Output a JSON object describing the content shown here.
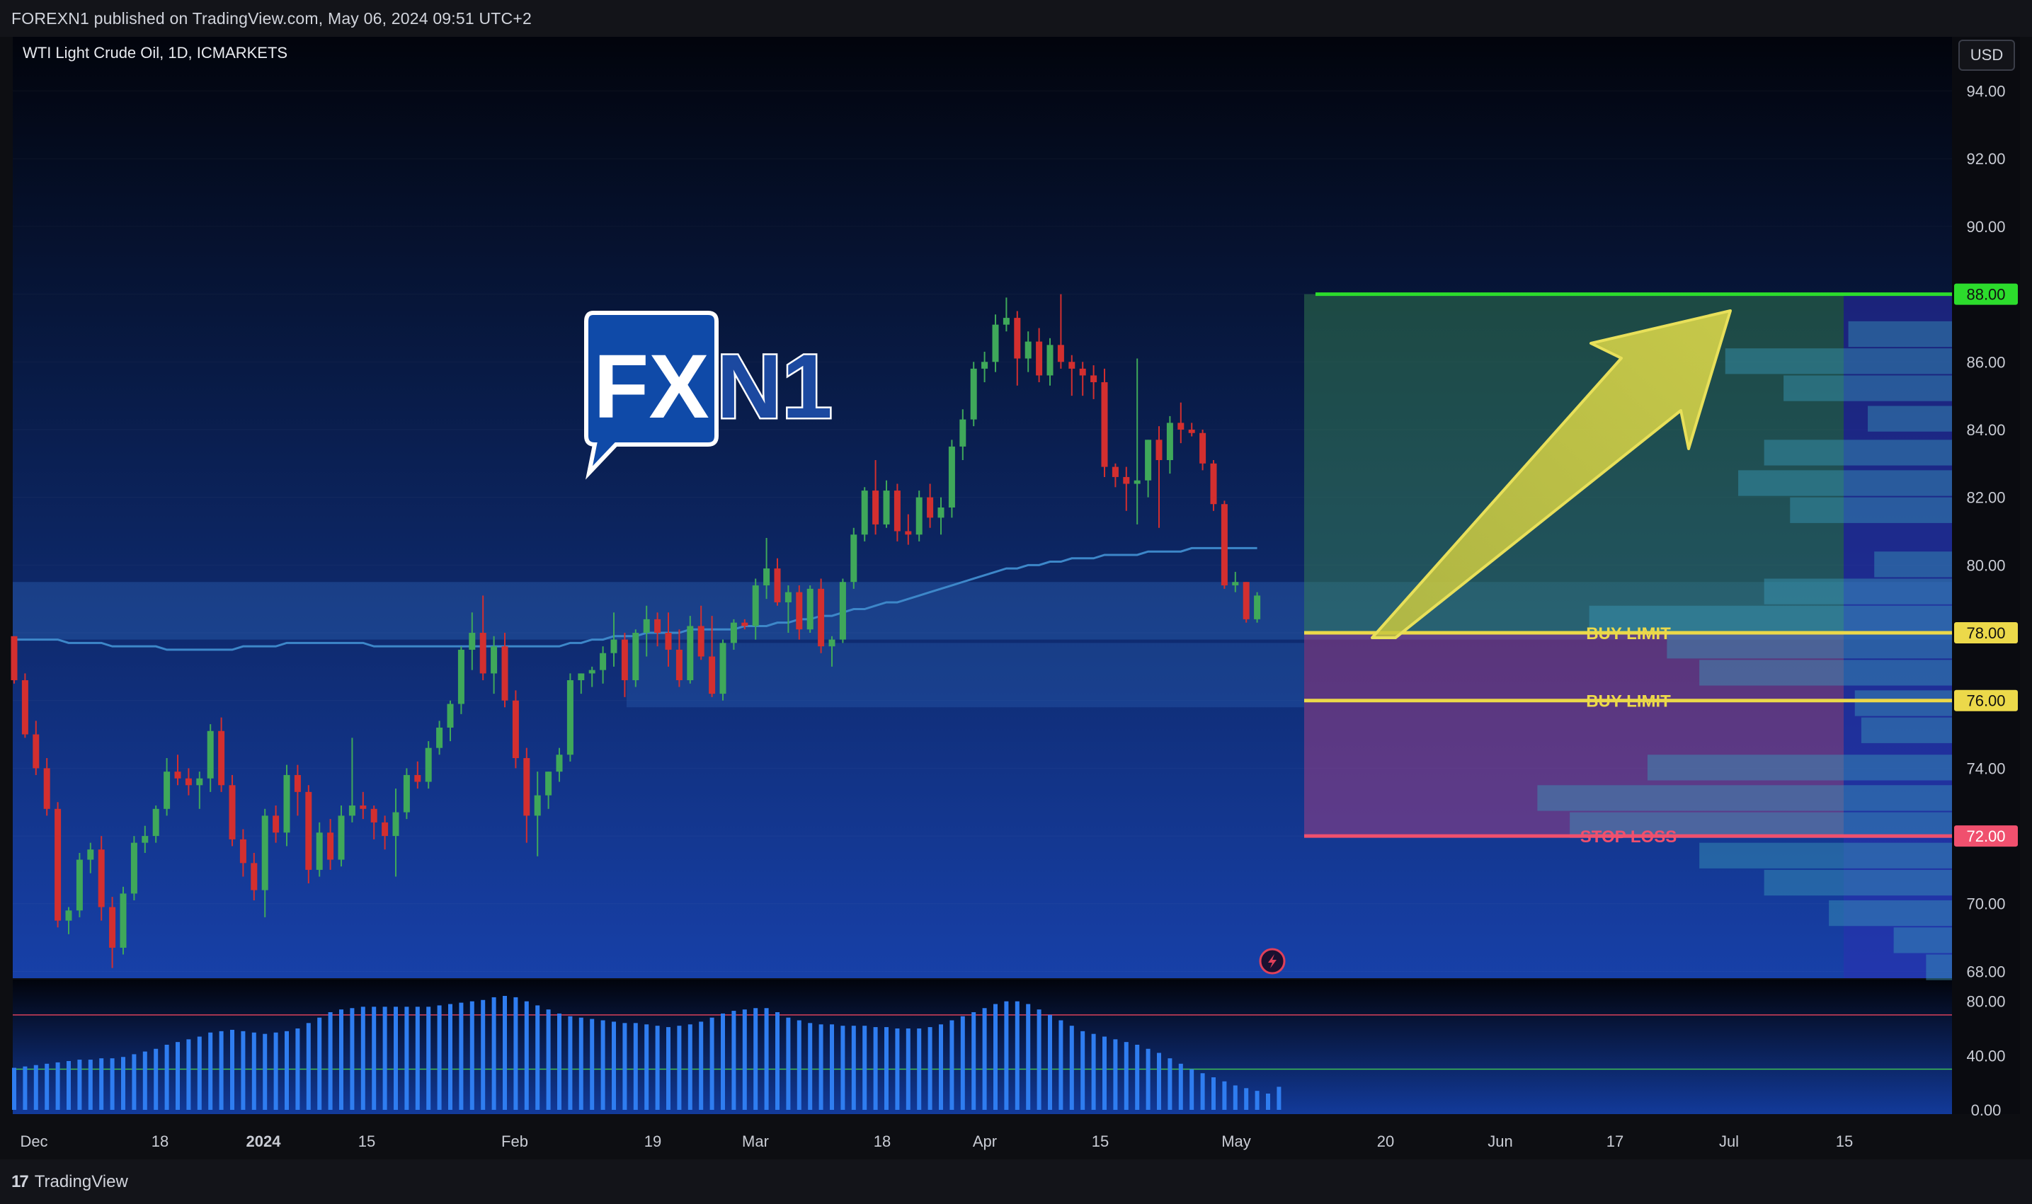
{
  "header": {
    "publish_info": "FOREXN1 published on TradingView.com, May 06, 2024 09:51 UTC+2"
  },
  "chart_header": {
    "symbol_title": "WTI Light Crude Oil, 1D, ICMARKETS",
    "currency_button": "USD"
  },
  "watermark": {
    "logo_left": "FX",
    "logo_right": "N1"
  },
  "footer": {
    "brand_label": "TradingView",
    "brand_glyph": "17"
  },
  "colors": {
    "up_candle": "#26a69a",
    "up_candle_fill": "#3fa85a",
    "down_candle": "#d32f2f",
    "ma_line": "#3d87c9",
    "target_line": "#2cdc2c",
    "buy_limit_line": "#ecd94a",
    "stop_loss_line": "#f0506e",
    "rsi_bar": "#2f7df0"
  },
  "chart_data": [
    {
      "type": "candlestick",
      "title": "WTI Light Crude Oil, 1D, ICMARKETS",
      "currency": "USD",
      "y_ticks": [
        "94.00",
        "92.00",
        "90.00",
        "86.00",
        "84.00",
        "82.00",
        "80.00",
        "74.00",
        "70.00",
        "68.00"
      ],
      "ylim": [
        67.8,
        95.6
      ],
      "x_ticks": [
        "Dec",
        "18",
        "2024",
        "15",
        "Feb",
        "19",
        "Mar",
        "18",
        "Apr",
        "15",
        "May",
        "20",
        "Jun",
        "17",
        "Jul",
        "15"
      ],
      "candles": [
        {
          "o": 77.9,
          "h": 77.9,
          "l": 76.5,
          "c": 76.6
        },
        {
          "o": 76.6,
          "h": 76.8,
          "l": 74.9,
          "c": 75.0
        },
        {
          "o": 75.0,
          "h": 75.4,
          "l": 73.8,
          "c": 74.0
        },
        {
          "o": 74.0,
          "h": 74.3,
          "l": 72.6,
          "c": 72.8
        },
        {
          "o": 72.8,
          "h": 73.0,
          "l": 69.3,
          "c": 69.5
        },
        {
          "o": 69.5,
          "h": 69.9,
          "l": 69.1,
          "c": 69.8
        },
        {
          "o": 69.8,
          "h": 71.5,
          "l": 69.6,
          "c": 71.3
        },
        {
          "o": 71.3,
          "h": 71.8,
          "l": 70.9,
          "c": 71.6
        },
        {
          "o": 71.6,
          "h": 72.0,
          "l": 69.5,
          "c": 69.9
        },
        {
          "o": 69.9,
          "h": 70.2,
          "l": 68.1,
          "c": 68.7
        },
        {
          "o": 68.7,
          "h": 70.5,
          "l": 68.5,
          "c": 70.3
        },
        {
          "o": 70.3,
          "h": 72.0,
          "l": 70.1,
          "c": 71.8
        },
        {
          "o": 71.8,
          "h": 72.3,
          "l": 71.5,
          "c": 72.0
        },
        {
          "o": 72.0,
          "h": 72.9,
          "l": 71.8,
          "c": 72.8
        },
        {
          "o": 72.8,
          "h": 74.3,
          "l": 72.6,
          "c": 73.9
        },
        {
          "o": 73.9,
          "h": 74.4,
          "l": 73.5,
          "c": 73.7
        },
        {
          "o": 73.7,
          "h": 74.0,
          "l": 73.2,
          "c": 73.5
        },
        {
          "o": 73.5,
          "h": 73.9,
          "l": 72.8,
          "c": 73.7
        },
        {
          "o": 73.7,
          "h": 75.3,
          "l": 73.3,
          "c": 75.1
        },
        {
          "o": 75.1,
          "h": 75.5,
          "l": 73.3,
          "c": 73.5
        },
        {
          "o": 73.5,
          "h": 73.8,
          "l": 71.7,
          "c": 71.9
        },
        {
          "o": 71.9,
          "h": 72.2,
          "l": 70.8,
          "c": 71.2
        },
        {
          "o": 71.2,
          "h": 71.5,
          "l": 70.1,
          "c": 70.4
        },
        {
          "o": 70.4,
          "h": 72.8,
          "l": 69.6,
          "c": 72.6
        },
        {
          "o": 72.6,
          "h": 72.9,
          "l": 71.8,
          "c": 72.1
        },
        {
          "o": 72.1,
          "h": 74.1,
          "l": 71.7,
          "c": 73.8
        },
        {
          "o": 73.8,
          "h": 74.1,
          "l": 72.6,
          "c": 73.3
        },
        {
          "o": 73.3,
          "h": 73.5,
          "l": 70.6,
          "c": 71.0
        },
        {
          "o": 71.0,
          "h": 72.4,
          "l": 70.8,
          "c": 72.1
        },
        {
          "o": 72.1,
          "h": 72.5,
          "l": 71.0,
          "c": 71.3
        },
        {
          "o": 71.3,
          "h": 72.9,
          "l": 71.1,
          "c": 72.6
        },
        {
          "o": 72.6,
          "h": 74.9,
          "l": 72.4,
          "c": 72.9
        },
        {
          "o": 72.9,
          "h": 73.3,
          "l": 72.5,
          "c": 72.8
        },
        {
          "o": 72.8,
          "h": 72.9,
          "l": 71.9,
          "c": 72.4
        },
        {
          "o": 72.4,
          "h": 72.6,
          "l": 71.6,
          "c": 72.0
        },
        {
          "o": 72.0,
          "h": 73.4,
          "l": 70.8,
          "c": 72.7
        },
        {
          "o": 72.7,
          "h": 74.0,
          "l": 72.5,
          "c": 73.8
        },
        {
          "o": 73.8,
          "h": 74.2,
          "l": 73.4,
          "c": 73.6
        },
        {
          "o": 73.6,
          "h": 74.8,
          "l": 73.4,
          "c": 74.6
        },
        {
          "o": 74.6,
          "h": 75.4,
          "l": 74.4,
          "c": 75.2
        },
        {
          "o": 75.2,
          "h": 76.0,
          "l": 74.8,
          "c": 75.9
        },
        {
          "o": 75.9,
          "h": 77.6,
          "l": 75.6,
          "c": 77.5
        },
        {
          "o": 77.5,
          "h": 78.6,
          "l": 76.9,
          "c": 78.0
        },
        {
          "o": 78.0,
          "h": 79.1,
          "l": 76.6,
          "c": 76.8
        },
        {
          "o": 76.8,
          "h": 77.9,
          "l": 76.2,
          "c": 77.6
        },
        {
          "o": 77.6,
          "h": 78.0,
          "l": 75.8,
          "c": 76.0
        },
        {
          "o": 76.0,
          "h": 76.3,
          "l": 74.0,
          "c": 74.3
        },
        {
          "o": 74.3,
          "h": 74.6,
          "l": 71.8,
          "c": 72.6
        },
        {
          "o": 72.6,
          "h": 73.9,
          "l": 71.4,
          "c": 73.2
        },
        {
          "o": 73.2,
          "h": 73.9,
          "l": 72.8,
          "c": 73.9
        },
        {
          "o": 73.9,
          "h": 74.6,
          "l": 73.6,
          "c": 74.4
        },
        {
          "o": 74.4,
          "h": 76.8,
          "l": 74.2,
          "c": 76.6
        },
        {
          "o": 76.6,
          "h": 76.8,
          "l": 76.2,
          "c": 76.8
        },
        {
          "o": 76.8,
          "h": 77.0,
          "l": 76.4,
          "c": 76.9
        },
        {
          "o": 76.9,
          "h": 77.6,
          "l": 76.5,
          "c": 77.4
        },
        {
          "o": 77.4,
          "h": 78.6,
          "l": 77.0,
          "c": 77.8
        },
        {
          "o": 77.8,
          "h": 78.0,
          "l": 76.1,
          "c": 76.6
        },
        {
          "o": 76.6,
          "h": 78.1,
          "l": 76.4,
          "c": 78.0
        },
        {
          "o": 78.0,
          "h": 78.8,
          "l": 77.3,
          "c": 78.4
        },
        {
          "o": 78.4,
          "h": 78.6,
          "l": 77.6,
          "c": 78.0
        },
        {
          "o": 78.0,
          "h": 78.6,
          "l": 77.0,
          "c": 77.5
        },
        {
          "o": 77.5,
          "h": 78.1,
          "l": 76.4,
          "c": 76.6
        },
        {
          "o": 76.6,
          "h": 78.5,
          "l": 76.5,
          "c": 78.2
        },
        {
          "o": 78.2,
          "h": 78.8,
          "l": 77.2,
          "c": 77.3
        },
        {
          "o": 77.3,
          "h": 78.5,
          "l": 76.1,
          "c": 76.2
        },
        {
          "o": 76.2,
          "h": 77.8,
          "l": 76.0,
          "c": 77.7
        },
        {
          "o": 77.7,
          "h": 78.4,
          "l": 77.5,
          "c": 78.3
        },
        {
          "o": 78.3,
          "h": 78.4,
          "l": 78.1,
          "c": 78.2
        },
        {
          "o": 78.2,
          "h": 79.6,
          "l": 77.8,
          "c": 79.4
        },
        {
          "o": 79.4,
          "h": 80.8,
          "l": 79.0,
          "c": 79.9
        },
        {
          "o": 79.9,
          "h": 80.2,
          "l": 78.8,
          "c": 78.9
        },
        {
          "o": 78.9,
          "h": 79.4,
          "l": 78.0,
          "c": 79.2
        },
        {
          "o": 79.2,
          "h": 79.4,
          "l": 77.8,
          "c": 78.1
        },
        {
          "o": 78.1,
          "h": 79.4,
          "l": 78.0,
          "c": 79.3
        },
        {
          "o": 79.3,
          "h": 79.6,
          "l": 77.4,
          "c": 77.6
        },
        {
          "o": 77.6,
          "h": 77.9,
          "l": 77.0,
          "c": 77.8
        },
        {
          "o": 77.8,
          "h": 79.6,
          "l": 77.7,
          "c": 79.5
        },
        {
          "o": 79.5,
          "h": 81.1,
          "l": 79.3,
          "c": 80.9
        },
        {
          "o": 80.9,
          "h": 82.3,
          "l": 80.7,
          "c": 82.2
        },
        {
          "o": 82.2,
          "h": 83.1,
          "l": 80.9,
          "c": 81.2
        },
        {
          "o": 81.2,
          "h": 82.5,
          "l": 81.1,
          "c": 82.2
        },
        {
          "o": 82.2,
          "h": 82.4,
          "l": 80.7,
          "c": 81.0
        },
        {
          "o": 81.0,
          "h": 81.5,
          "l": 80.6,
          "c": 80.9
        },
        {
          "o": 80.9,
          "h": 82.2,
          "l": 80.7,
          "c": 82.0
        },
        {
          "o": 82.0,
          "h": 82.4,
          "l": 81.1,
          "c": 81.4
        },
        {
          "o": 81.4,
          "h": 82.0,
          "l": 80.9,
          "c": 81.7
        },
        {
          "o": 81.7,
          "h": 83.7,
          "l": 81.4,
          "c": 83.5
        },
        {
          "o": 83.5,
          "h": 84.6,
          "l": 83.1,
          "c": 84.3
        },
        {
          "o": 84.3,
          "h": 86.0,
          "l": 84.1,
          "c": 85.8
        },
        {
          "o": 85.8,
          "h": 86.3,
          "l": 85.4,
          "c": 86.0
        },
        {
          "o": 86.0,
          "h": 87.4,
          "l": 85.7,
          "c": 87.1
        },
        {
          "o": 87.1,
          "h": 87.9,
          "l": 86.9,
          "c": 87.3
        },
        {
          "o": 87.3,
          "h": 87.5,
          "l": 85.3,
          "c": 86.1
        },
        {
          "o": 86.1,
          "h": 86.9,
          "l": 85.7,
          "c": 86.6
        },
        {
          "o": 86.6,
          "h": 87.0,
          "l": 85.4,
          "c": 85.6
        },
        {
          "o": 85.6,
          "h": 86.7,
          "l": 85.3,
          "c": 86.5
        },
        {
          "o": 86.5,
          "h": 88.0,
          "l": 85.8,
          "c": 86.0
        },
        {
          "o": 86.0,
          "h": 86.2,
          "l": 85.0,
          "c": 85.8
        },
        {
          "o": 85.8,
          "h": 86.0,
          "l": 85.0,
          "c": 85.6
        },
        {
          "o": 85.6,
          "h": 85.9,
          "l": 84.9,
          "c": 85.4
        },
        {
          "o": 85.4,
          "h": 85.8,
          "l": 82.6,
          "c": 82.9
        },
        {
          "o": 82.9,
          "h": 83.0,
          "l": 82.3,
          "c": 82.6
        },
        {
          "o": 82.6,
          "h": 82.9,
          "l": 81.6,
          "c": 82.4
        },
        {
          "o": 82.4,
          "h": 86.1,
          "l": 81.2,
          "c": 82.5
        },
        {
          "o": 82.5,
          "h": 83.7,
          "l": 82.0,
          "c": 83.7
        },
        {
          "o": 83.7,
          "h": 84.1,
          "l": 81.1,
          "c": 83.1
        },
        {
          "o": 83.1,
          "h": 84.4,
          "l": 82.7,
          "c": 84.2
        },
        {
          "o": 84.2,
          "h": 84.8,
          "l": 83.6,
          "c": 84.0
        },
        {
          "o": 84.0,
          "h": 84.2,
          "l": 83.8,
          "c": 83.9
        },
        {
          "o": 83.9,
          "h": 84.0,
          "l": 82.8,
          "c": 83.0
        },
        {
          "o": 83.0,
          "h": 83.1,
          "l": 81.6,
          "c": 81.8
        },
        {
          "o": 81.8,
          "h": 81.9,
          "l": 79.3,
          "c": 79.4
        },
        {
          "o": 79.4,
          "h": 79.8,
          "l": 79.2,
          "c": 79.5
        },
        {
          "o": 79.5,
          "h": 79.5,
          "l": 78.3,
          "c": 78.4
        },
        {
          "o": 78.4,
          "h": 79.2,
          "l": 78.3,
          "c": 79.1
        }
      ],
      "moving_average": [
        77.8,
        77.8,
        77.8,
        77.8,
        77.8,
        77.7,
        77.7,
        77.7,
        77.7,
        77.6,
        77.6,
        77.6,
        77.6,
        77.6,
        77.5,
        77.5,
        77.5,
        77.5,
        77.5,
        77.5,
        77.5,
        77.6,
        77.6,
        77.6,
        77.6,
        77.7,
        77.7,
        77.7,
        77.7,
        77.7,
        77.7,
        77.7,
        77.7,
        77.6,
        77.6,
        77.6,
        77.6,
        77.6,
        77.6,
        77.6,
        77.6,
        77.6,
        77.6,
        77.6,
        77.6,
        77.6,
        77.6,
        77.6,
        77.6,
        77.6,
        77.6,
        77.7,
        77.7,
        77.8,
        77.8,
        77.9,
        77.9,
        77.9,
        78.0,
        78.0,
        78.0,
        78.0,
        78.1,
        78.1,
        78.1,
        78.1,
        78.1,
        78.2,
        78.2,
        78.2,
        78.3,
        78.3,
        78.4,
        78.4,
        78.5,
        78.5,
        78.6,
        78.7,
        78.7,
        78.8,
        78.9,
        78.9,
        79.0,
        79.1,
        79.2,
        79.3,
        79.4,
        79.5,
        79.6,
        79.7,
        79.8,
        79.9,
        79.9,
        80.0,
        80.0,
        80.1,
        80.1,
        80.2,
        80.2,
        80.2,
        80.3,
        80.3,
        80.3,
        80.3,
        80.4,
        80.4,
        80.4,
        80.4,
        80.5,
        80.5,
        80.5,
        80.5,
        80.5,
        80.5,
        80.5
      ],
      "levels": [
        {
          "label": "88.00",
          "price": 88.0,
          "name": "target"
        },
        {
          "label": "78.00",
          "price": 78.0,
          "name": "BUY LIMIT"
        },
        {
          "label": "76.00",
          "price": 76.0,
          "name": "BUY LIMIT"
        },
        {
          "label": "72.00",
          "price": 72.0,
          "name": "STOP LOSS"
        }
      ],
      "level_names": {
        "buy_limit_1": "BUY LIMIT",
        "buy_limit_2": "BUY LIMIT",
        "stop_loss": "STOP LOSS"
      },
      "support_zone": [
        77.8,
        79.5
      ],
      "support_zone_2": [
        75.8,
        77.7
      ],
      "volume_profile": [
        {
          "price": 86.8,
          "width": 0.16
        },
        {
          "price": 86.0,
          "width": 0.35
        },
        {
          "price": 85.2,
          "width": 0.26
        },
        {
          "price": 84.3,
          "width": 0.13
        },
        {
          "price": 83.3,
          "width": 0.29
        },
        {
          "price": 82.4,
          "width": 0.33
        },
        {
          "price": 81.6,
          "width": 0.25
        },
        {
          "price": 80.0,
          "width": 0.12
        },
        {
          "price": 79.2,
          "width": 0.29
        },
        {
          "price": 78.4,
          "width": 0.56
        },
        {
          "price": 77.6,
          "width": 0.44
        },
        {
          "price": 76.8,
          "width": 0.39
        },
        {
          "price": 75.9,
          "width": 0.15
        },
        {
          "price": 75.1,
          "width": 0.14
        },
        {
          "price": 74.0,
          "width": 0.47
        },
        {
          "price": 73.1,
          "width": 0.64
        },
        {
          "price": 72.3,
          "width": 0.59
        },
        {
          "price": 71.4,
          "width": 0.39
        },
        {
          "price": 70.6,
          "width": 0.29
        },
        {
          "price": 69.7,
          "width": 0.19
        },
        {
          "price": 68.9,
          "width": 0.09
        },
        {
          "price": 68.1,
          "width": 0.04
        }
      ]
    },
    {
      "type": "bar",
      "title": "",
      "y_ticks": [
        "80.00",
        "40.00",
        "0.00"
      ],
      "ylim": [
        0,
        96
      ],
      "upper_band": 70,
      "lower_band": 30,
      "values": [
        31,
        32,
        33,
        34,
        35,
        36,
        37,
        37,
        38,
        38,
        39,
        41,
        43,
        45,
        48,
        50,
        52,
        54,
        57,
        58,
        59,
        58,
        57,
        56,
        57,
        58,
        60,
        64,
        68,
        72,
        74,
        75,
        76,
        76,
        76,
        76,
        76,
        76,
        76,
        77,
        78,
        79,
        80,
        81,
        83,
        84,
        83,
        80,
        77,
        74,
        71,
        69,
        68,
        67,
        66,
        65,
        64,
        64,
        63,
        62,
        61,
        62,
        63,
        65,
        68,
        71,
        73,
        74,
        75,
        75,
        72,
        68,
        66,
        64,
        63,
        63,
        62,
        62,
        62,
        61,
        61,
        60,
        60,
        60,
        61,
        63,
        66,
        69,
        72,
        75,
        78,
        80,
        80,
        78,
        74,
        70,
        66,
        62,
        58,
        56,
        54,
        52,
        50,
        48,
        45,
        42,
        38,
        34,
        30,
        27,
        24,
        21,
        18,
        16,
        14,
        12,
        17
      ],
      "x_ticks": [
        "Dec",
        "18",
        "2024",
        "15",
        "Feb",
        "19",
        "Mar",
        "18",
        "Apr",
        "15",
        "May",
        "20",
        "Jun",
        "17",
        "Jul",
        "15"
      ]
    }
  ]
}
